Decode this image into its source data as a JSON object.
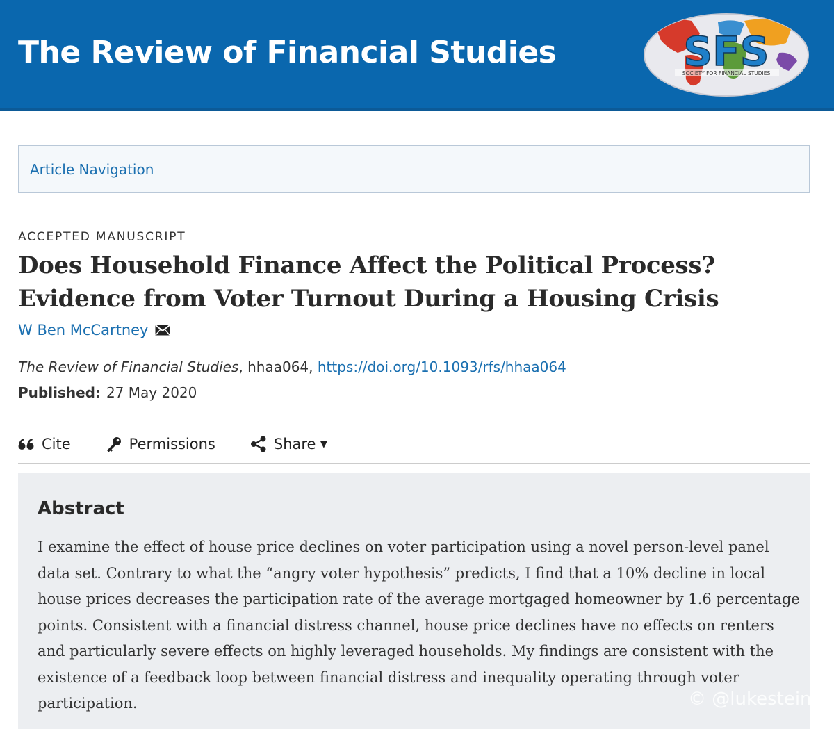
{
  "header": {
    "journal_title": "The Review of Financial Studies",
    "logo_text": "SFS",
    "logo_subtext": "SOCIETY FOR FINANCIAL STUDIES",
    "background_color": "#0a67ae"
  },
  "nav": {
    "label": "Article Navigation"
  },
  "article": {
    "type": "ACCEPTED MANUSCRIPT",
    "title": "Does Household Finance Affect the Political Process? Evidence from Voter Turnout During a Housing Crisis",
    "author": "W Ben McCartney",
    "journal": "The Review of Financial Studies",
    "article_id": ", hhaa064, ",
    "doi": "https://doi.org/10.1093/rfs/hhaa064",
    "published_label": "Published:",
    "published_date": "27 May 2020"
  },
  "tools": {
    "cite": "Cite",
    "permissions": "Permissions",
    "share": "Share"
  },
  "abstract": {
    "heading": "Abstract",
    "text": "I examine the effect of house price declines on voter participation using a novel person-level panel data set. Contrary to what the “angry voter hypothesis” predicts, I find that a 10% decline in local house prices decreases the participation rate of the average mortgaged homeowner by 1.6 percentage points. Consistent with a financial distress channel, house price declines have no effects on renters and particularly severe effects on highly leveraged households. My findings are consistent with the existence of a feedback loop between financial distress and inequality operating through voter participation."
  },
  "watermark": "© @lukestein",
  "icons": {
    "cite": "quote-icon",
    "permissions": "key-icon",
    "share": "share-icon",
    "author_contact": "envelope-icon"
  }
}
